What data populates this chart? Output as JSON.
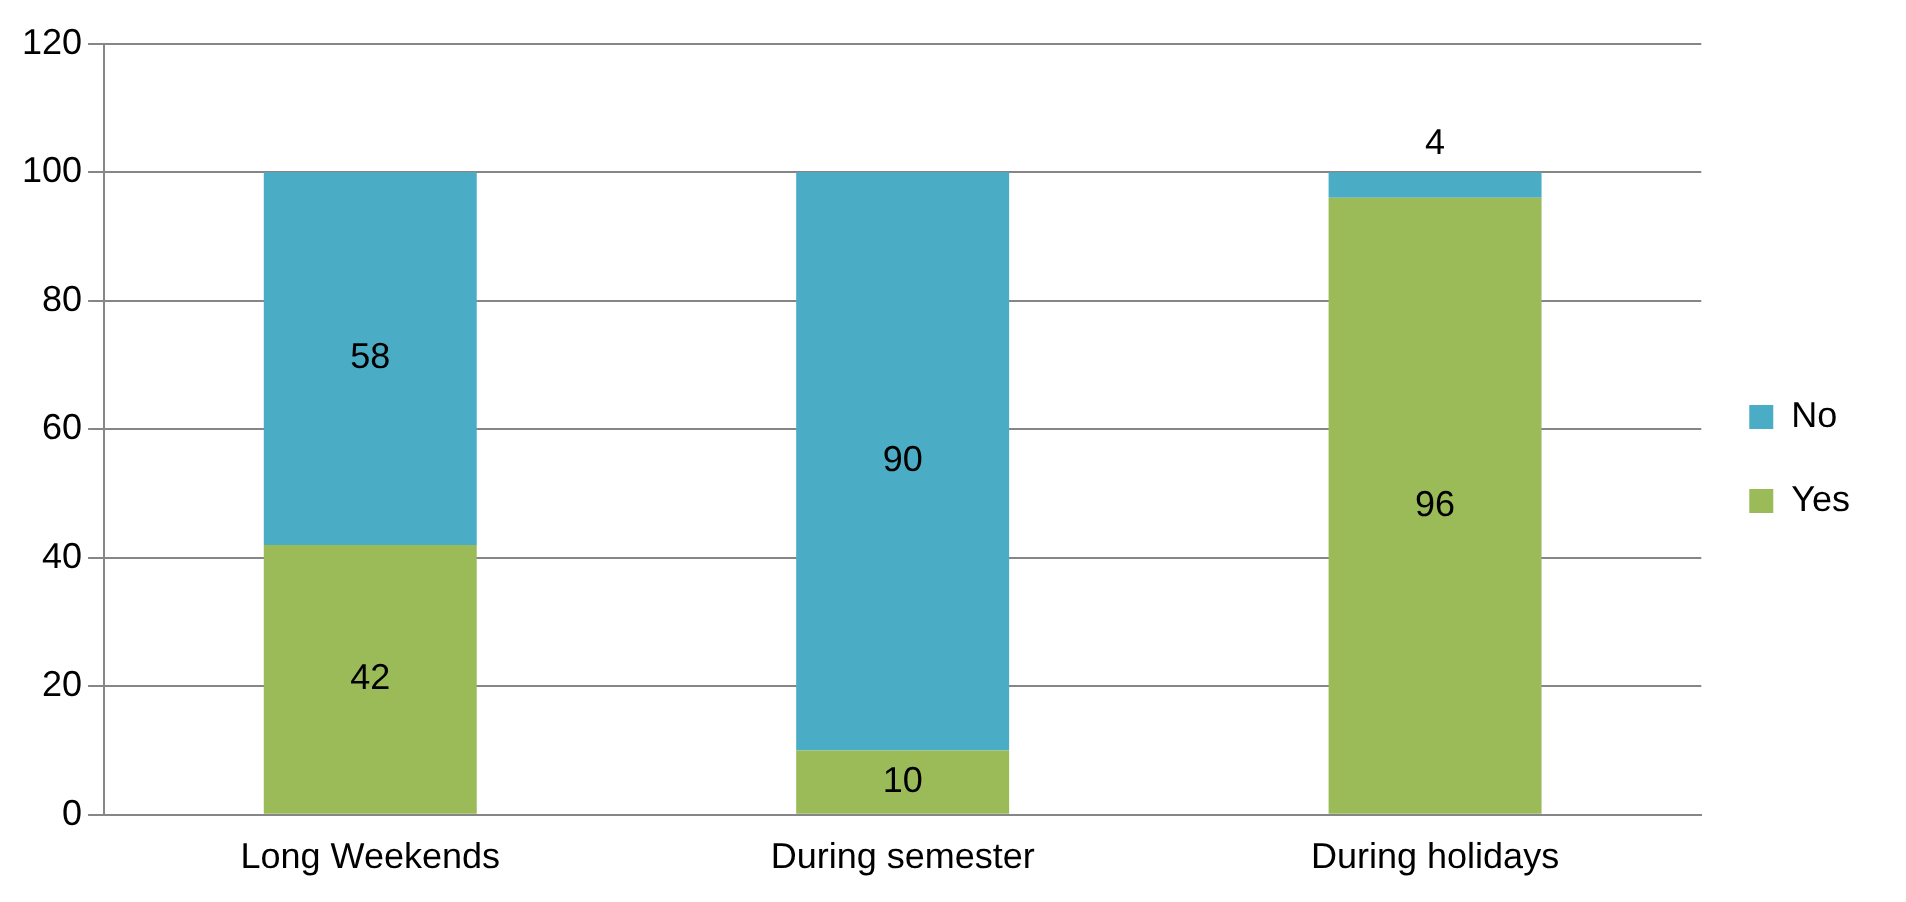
{
  "chart_data": {
    "type": "bar",
    "stacked": true,
    "categories": [
      "Long Weekends",
      "During semester",
      "During holidays"
    ],
    "series": [
      {
        "name": "Yes",
        "color": "#9bbb59",
        "values": [
          42,
          10,
          96
        ]
      },
      {
        "name": "No",
        "color": "#4bacc6",
        "values": [
          58,
          90,
          4
        ]
      }
    ],
    "ylim": [
      0,
      120
    ],
    "yticks": [
      0,
      20,
      40,
      60,
      80,
      100,
      120
    ],
    "grid": "y",
    "legend": "right",
    "data_labels": true
  }
}
